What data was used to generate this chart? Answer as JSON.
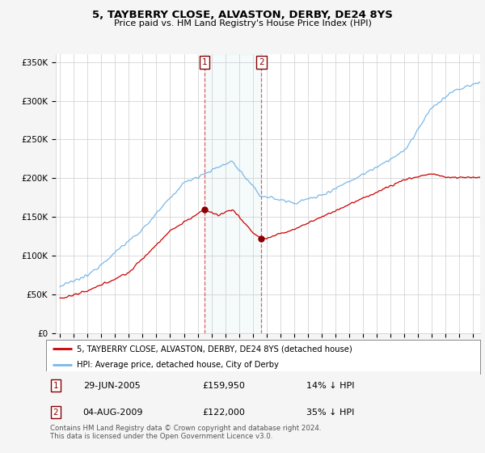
{
  "title": "5, TAYBERRY CLOSE, ALVASTON, DERBY, DE24 8YS",
  "subtitle": "Price paid vs. HM Land Registry's House Price Index (HPI)",
  "hpi_label": "HPI: Average price, detached house, City of Derby",
  "property_label": "5, TAYBERRY CLOSE, ALVASTON, DERBY, DE24 8YS (detached house)",
  "transaction1_date": "29-JUN-2005",
  "transaction1_price": 159950,
  "transaction1_pct": "14% ↓ HPI",
  "transaction2_date": "04-AUG-2009",
  "transaction2_price": 122000,
  "transaction2_pct": "35% ↓ HPI",
  "footer": "Contains HM Land Registry data © Crown copyright and database right 2024.\nThis data is licensed under the Open Government Licence v3.0.",
  "hpi_color": "#7ab8e8",
  "property_color": "#cc0000",
  "vline_color": "#cc0000",
  "background_color": "#f5f5f5",
  "plot_bg": "#ffffff",
  "ylim": [
    0,
    360000
  ],
  "transaction1_year": 2005.5,
  "transaction2_year": 2009.62,
  "transaction1_value": 159950,
  "transaction2_value": 122000
}
